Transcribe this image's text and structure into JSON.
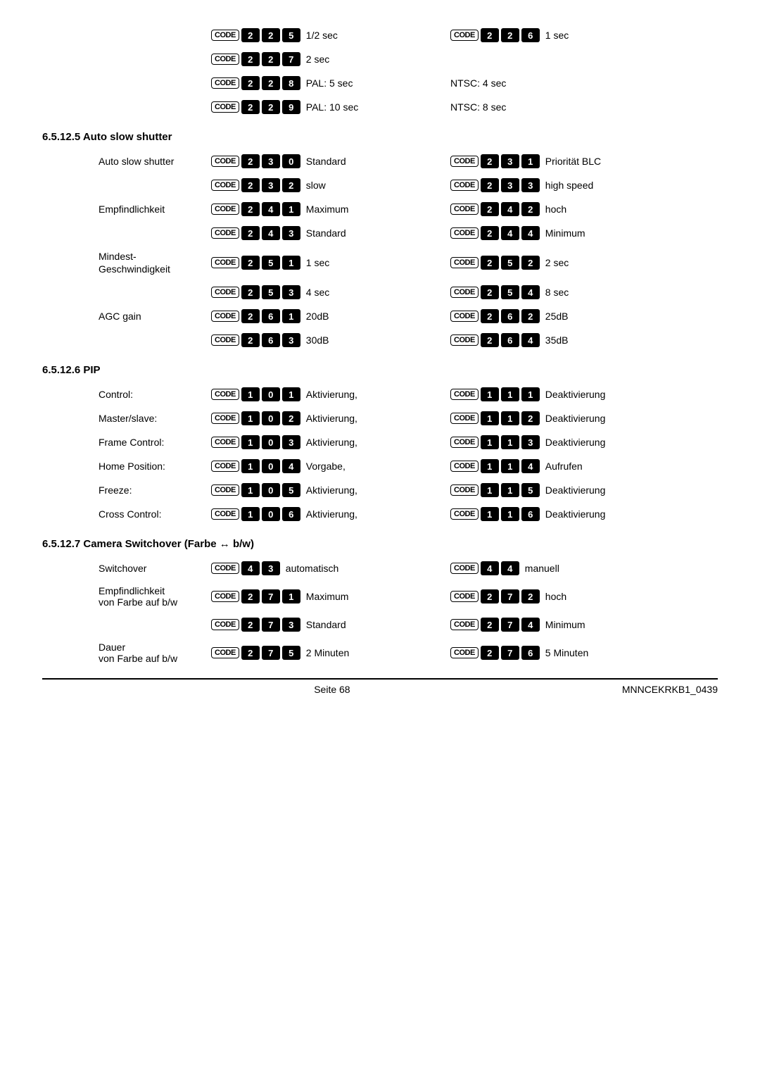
{
  "colors": {
    "page_bg": "#ffffff",
    "text": "#000000",
    "digit_bg": "#000000",
    "digit_fg": "#ffffff",
    "code_border": "#000000"
  },
  "code_label": "CODE",
  "sections": {
    "topExtra": {
      "rows": [
        {
          "label": "",
          "left": {
            "digits": [
              "2",
              "2",
              "5"
            ],
            "text": "1/2 sec"
          },
          "right": {
            "digits": [
              "2",
              "2",
              "6"
            ],
            "text": "1 sec"
          }
        },
        {
          "label": "",
          "left": {
            "digits": [
              "2",
              "2",
              "7"
            ],
            "text": "2 sec"
          },
          "right": null
        },
        {
          "label": "",
          "left": {
            "digits": [
              "2",
              "2",
              "8"
            ],
            "text": "PAL: 5 sec"
          },
          "right": {
            "textOnly": "NTSC: 4 sec"
          }
        },
        {
          "label": "",
          "left": {
            "digits": [
              "2",
              "2",
              "9"
            ],
            "text": "PAL: 10 sec"
          },
          "right": {
            "textOnly": "NTSC: 8 sec"
          }
        }
      ]
    },
    "autoSlowShutter": {
      "heading": "6.5.12.5 Auto slow shutter",
      "rows": [
        {
          "label": "Auto slow shutter",
          "left": {
            "digits": [
              "2",
              "3",
              "0"
            ],
            "text": "Standard"
          },
          "right": {
            "digits": [
              "2",
              "3",
              "1"
            ],
            "text": "Priorität BLC"
          }
        },
        {
          "label": "",
          "left": {
            "digits": [
              "2",
              "3",
              "2"
            ],
            "text": "slow"
          },
          "right": {
            "digits": [
              "2",
              "3",
              "3"
            ],
            "text": "high speed"
          }
        },
        {
          "label": "Empfindlichkeit",
          "left": {
            "digits": [
              "2",
              "4",
              "1"
            ],
            "text": "Maximum"
          },
          "right": {
            "digits": [
              "2",
              "4",
              "2"
            ],
            "text": "hoch"
          }
        },
        {
          "label": "",
          "left": {
            "digits": [
              "2",
              "4",
              "3"
            ],
            "text": "Standard"
          },
          "right": {
            "digits": [
              "2",
              "4",
              "4"
            ],
            "text": "Minimum"
          }
        },
        {
          "label": "Mindest-Geschwindigkeit",
          "left": {
            "digits": [
              "2",
              "5",
              "1"
            ],
            "text": "1 sec"
          },
          "right": {
            "digits": [
              "2",
              "5",
              "2"
            ],
            "text": "2 sec"
          }
        },
        {
          "label": "",
          "left": {
            "digits": [
              "2",
              "5",
              "3"
            ],
            "text": "4 sec"
          },
          "right": {
            "digits": [
              "2",
              "5",
              "4"
            ],
            "text": "8 sec"
          }
        },
        {
          "label": "AGC gain",
          "left": {
            "digits": [
              "2",
              "6",
              "1"
            ],
            "text": "20dB"
          },
          "right": {
            "digits": [
              "2",
              "6",
              "2"
            ],
            "text": "25dB"
          }
        },
        {
          "label": "",
          "left": {
            "digits": [
              "2",
              "6",
              "3"
            ],
            "text": "30dB"
          },
          "right": {
            "digits": [
              "2",
              "6",
              "4"
            ],
            "text": "35dB"
          }
        }
      ]
    },
    "pip": {
      "heading": "6.5.12.6 PIP",
      "rows": [
        {
          "label": "Control:",
          "left": {
            "digits": [
              "1",
              "0",
              "1"
            ],
            "text": "Aktivierung,"
          },
          "right": {
            "digits": [
              "1",
              "1",
              "1"
            ],
            "text": "Deaktivierung"
          }
        },
        {
          "label": "Master/slave:",
          "left": {
            "digits": [
              "1",
              "0",
              "2"
            ],
            "text": "Aktivierung,"
          },
          "right": {
            "digits": [
              "1",
              "1",
              "2"
            ],
            "text": "Deaktivierung"
          }
        },
        {
          "label": "Frame Control:",
          "left": {
            "digits": [
              "1",
              "0",
              "3"
            ],
            "text": "Aktivierung,"
          },
          "right": {
            "digits": [
              "1",
              "1",
              "3"
            ],
            "text": "Deaktivierung"
          }
        },
        {
          "label": "Home Position:",
          "left": {
            "digits": [
              "1",
              "0",
              "4"
            ],
            "text": "Vorgabe,"
          },
          "right": {
            "digits": [
              "1",
              "1",
              "4"
            ],
            "text": "Aufrufen"
          }
        },
        {
          "label": "Freeze:",
          "left": {
            "digits": [
              "1",
              "0",
              "5"
            ],
            "text": "Aktivierung,"
          },
          "right": {
            "digits": [
              "1",
              "1",
              "5"
            ],
            "text": "Deaktivierung"
          }
        },
        {
          "label": "Cross Control:",
          "left": {
            "digits": [
              "1",
              "0",
              "6"
            ],
            "text": "Aktivierung,"
          },
          "right": {
            "digits": [
              "1",
              "1",
              "6"
            ],
            "text": "Deaktivierung"
          }
        }
      ]
    },
    "cameraSwitchover": {
      "heading": "6.5.12.7 Camera Switchover (Farbe ↔ b/w)",
      "rows": [
        {
          "label": "Switchover",
          "left": {
            "digits": [
              "4",
              "3"
            ],
            "text": "automatisch"
          },
          "right": {
            "digits": [
              "4",
              "4"
            ],
            "text": "manuell"
          }
        },
        {
          "label": "Empfindlichkeit von Farbe auf b/w",
          "left": {
            "digits": [
              "2",
              "7",
              "1"
            ],
            "text": "Maximum"
          },
          "right": {
            "digits": [
              "2",
              "7",
              "2"
            ],
            "text": "hoch"
          }
        },
        {
          "label": "",
          "left": {
            "digits": [
              "2",
              "7",
              "3"
            ],
            "text": "Standard"
          },
          "right": {
            "digits": [
              "2",
              "7",
              "4"
            ],
            "text": "Minimum"
          }
        },
        {
          "label": "Dauer von Farbe auf b/w",
          "left": {
            "digits": [
              "2",
              "7",
              "5"
            ],
            "text": "2 Minuten"
          },
          "right": {
            "digits": [
              "2",
              "7",
              "6"
            ],
            "text": "5 Minuten"
          }
        }
      ]
    }
  },
  "footer": {
    "center": "Seite 68",
    "right": "MNNCEKRKB1_0439"
  }
}
